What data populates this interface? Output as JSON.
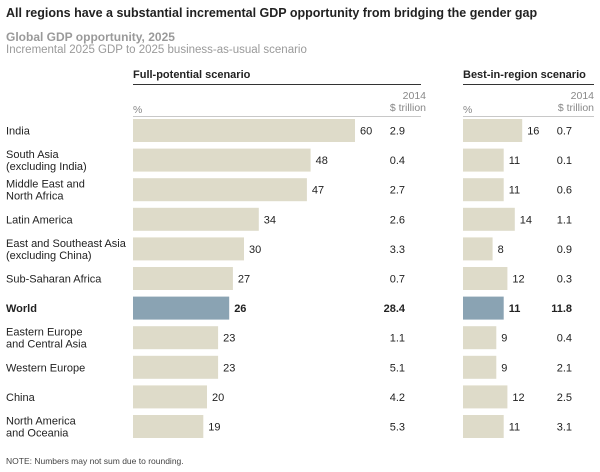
{
  "header": {
    "title": "All regions have a substantial incremental GDP opportunity from bridging the gender gap",
    "subtitle": "Global GDP opportunity, 2025",
    "description": "Incremental 2025 GDP to 2025 business-as-usual scenario"
  },
  "panels": {
    "full": {
      "title": "Full-potential scenario",
      "unit_pct": "%",
      "unit_value_1": "2014",
      "unit_value_2": "$ trillion"
    },
    "best": {
      "title": "Best-in-region scenario",
      "unit_pct": "%",
      "unit_value_1": "2014",
      "unit_value_2": "$ trillion"
    }
  },
  "footnote": "NOTE: Numbers may not sum due to rounding.",
  "colors": {
    "bar": "#dedbc9",
    "highlight": "#8aa3b3",
    "text": "#222222",
    "muted": "#9a9a9a"
  },
  "chart_data": {
    "type": "bar",
    "orientation": "horizontal",
    "categories": [
      [
        "India"
      ],
      [
        "South Asia",
        "(excluding India)"
      ],
      [
        "Middle East and",
        "North Africa"
      ],
      [
        "Latin America"
      ],
      [
        "East and Southeast Asia",
        "(excluding China)"
      ],
      [
        "Sub-Saharan Africa"
      ],
      [
        "World"
      ],
      [
        "Eastern Europe",
        "and Central Asia"
      ],
      [
        "Western Europe"
      ],
      [
        "China"
      ],
      [
        "North America",
        "and Oceania"
      ]
    ],
    "highlight_index": 6,
    "series": [
      {
        "name": "Full-potential scenario",
        "values": [
          60,
          48,
          47,
          34,
          30,
          27,
          26,
          23,
          23,
          20,
          19
        ],
        "trillion": [
          "2.9",
          "0.4",
          "2.7",
          "2.6",
          "3.3",
          "0.7",
          "28.4",
          "1.1",
          "5.1",
          "4.2",
          "5.3"
        ],
        "xlim": [
          0,
          60
        ]
      },
      {
        "name": "Best-in-region scenario",
        "values": [
          16,
          11,
          11,
          14,
          8,
          12,
          11,
          9,
          9,
          12,
          11
        ],
        "trillion": [
          "0.7",
          "0.1",
          "0.6",
          "1.1",
          "0.9",
          "0.3",
          "11.8",
          "0.4",
          "2.1",
          "2.5",
          "3.1"
        ],
        "xlim": [
          0,
          60
        ]
      }
    ]
  }
}
